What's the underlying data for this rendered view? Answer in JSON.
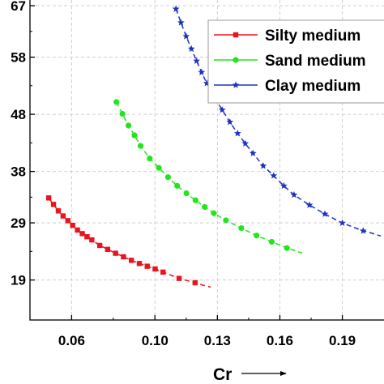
{
  "chart_data": {
    "type": "line",
    "xlabel": "Cr",
    "ylabel": "",
    "xlim": [
      0.04,
      0.21
    ],
    "ylim": [
      0.12,
      0.68
    ],
    "x_ticks": [
      0.06,
      0.1,
      0.13,
      0.16,
      0.19
    ],
    "x_tick_labels": [
      "0.06",
      "0.10",
      "0.13",
      "0.16",
      "0.19"
    ],
    "y_ticks": [
      0.19,
      0.29,
      0.38,
      0.48,
      0.58,
      0.67
    ],
    "y_tick_labels": [
      "19",
      "29",
      "38",
      "48",
      "58",
      "67"
    ],
    "grid": true,
    "legend_position": "top-right",
    "series": [
      {
        "name": "Silty medium",
        "color": "#e8141e",
        "marker": "square",
        "x": [
          0.049,
          0.0513,
          0.0536,
          0.0559,
          0.0582,
          0.0605,
          0.0628,
          0.0651,
          0.0674,
          0.0697,
          0.0735,
          0.0773,
          0.0811,
          0.0849,
          0.0887,
          0.0925,
          0.0963,
          0.1001,
          0.1039,
          0.1116,
          0.1193
        ],
        "y": [
          0.3336,
          0.3223,
          0.311,
          0.3021,
          0.2938,
          0.2856,
          0.2774,
          0.2712,
          0.2657,
          0.2602,
          0.2505,
          0.2436,
          0.2368,
          0.2306,
          0.2244,
          0.2189,
          0.2141,
          0.2093,
          0.2038,
          0.1928,
          0.1852
        ],
        "curve_x": [
          0.123,
          0.1268
        ],
        "curve_y": [
          0.181,
          0.1775
        ]
      },
      {
        "name": "Sand medium",
        "color": "#22e61c",
        "marker": "circle",
        "x": [
          0.0815,
          0.0844,
          0.0873,
          0.0902,
          0.0931,
          0.0975,
          0.1019,
          0.1063,
          0.1107,
          0.1151,
          0.1195,
          0.1239,
          0.1283,
          0.1341,
          0.1415,
          0.1488,
          0.1561,
          0.1634
        ],
        "y": [
          0.5014,
          0.4808,
          0.4603,
          0.4432,
          0.4247,
          0.4027,
          0.3863,
          0.3699,
          0.3548,
          0.3418,
          0.3295,
          0.3178,
          0.3068,
          0.2945,
          0.2808,
          0.2678,
          0.2568,
          0.2459
        ],
        "curve_x": [
          0.166,
          0.1708
        ],
        "curve_y": [
          0.243,
          0.237
        ]
      },
      {
        "name": "Clay medium",
        "color": "#1c32c0",
        "marker": "star",
        "x": [
          0.1101,
          0.1125,
          0.115,
          0.1175,
          0.12,
          0.1224,
          0.1249,
          0.1286,
          0.1323,
          0.136,
          0.1397,
          0.1434,
          0.1471,
          0.152,
          0.157,
          0.1619,
          0.1668,
          0.1742,
          0.1816,
          0.19,
          0.2
        ],
        "y": [
          0.6644,
          0.6404,
          0.6164,
          0.5946,
          0.5734,
          0.5535,
          0.5343,
          0.5096,
          0.4877,
          0.4664,
          0.4466,
          0.4288,
          0.4117,
          0.3897,
          0.3726,
          0.3548,
          0.339,
          0.3212,
          0.3055,
          0.2897,
          0.276
        ],
        "curve_x": [
          0.2022,
          0.2085
        ],
        "curve_y": [
          0.274,
          0.267
        ]
      }
    ]
  }
}
